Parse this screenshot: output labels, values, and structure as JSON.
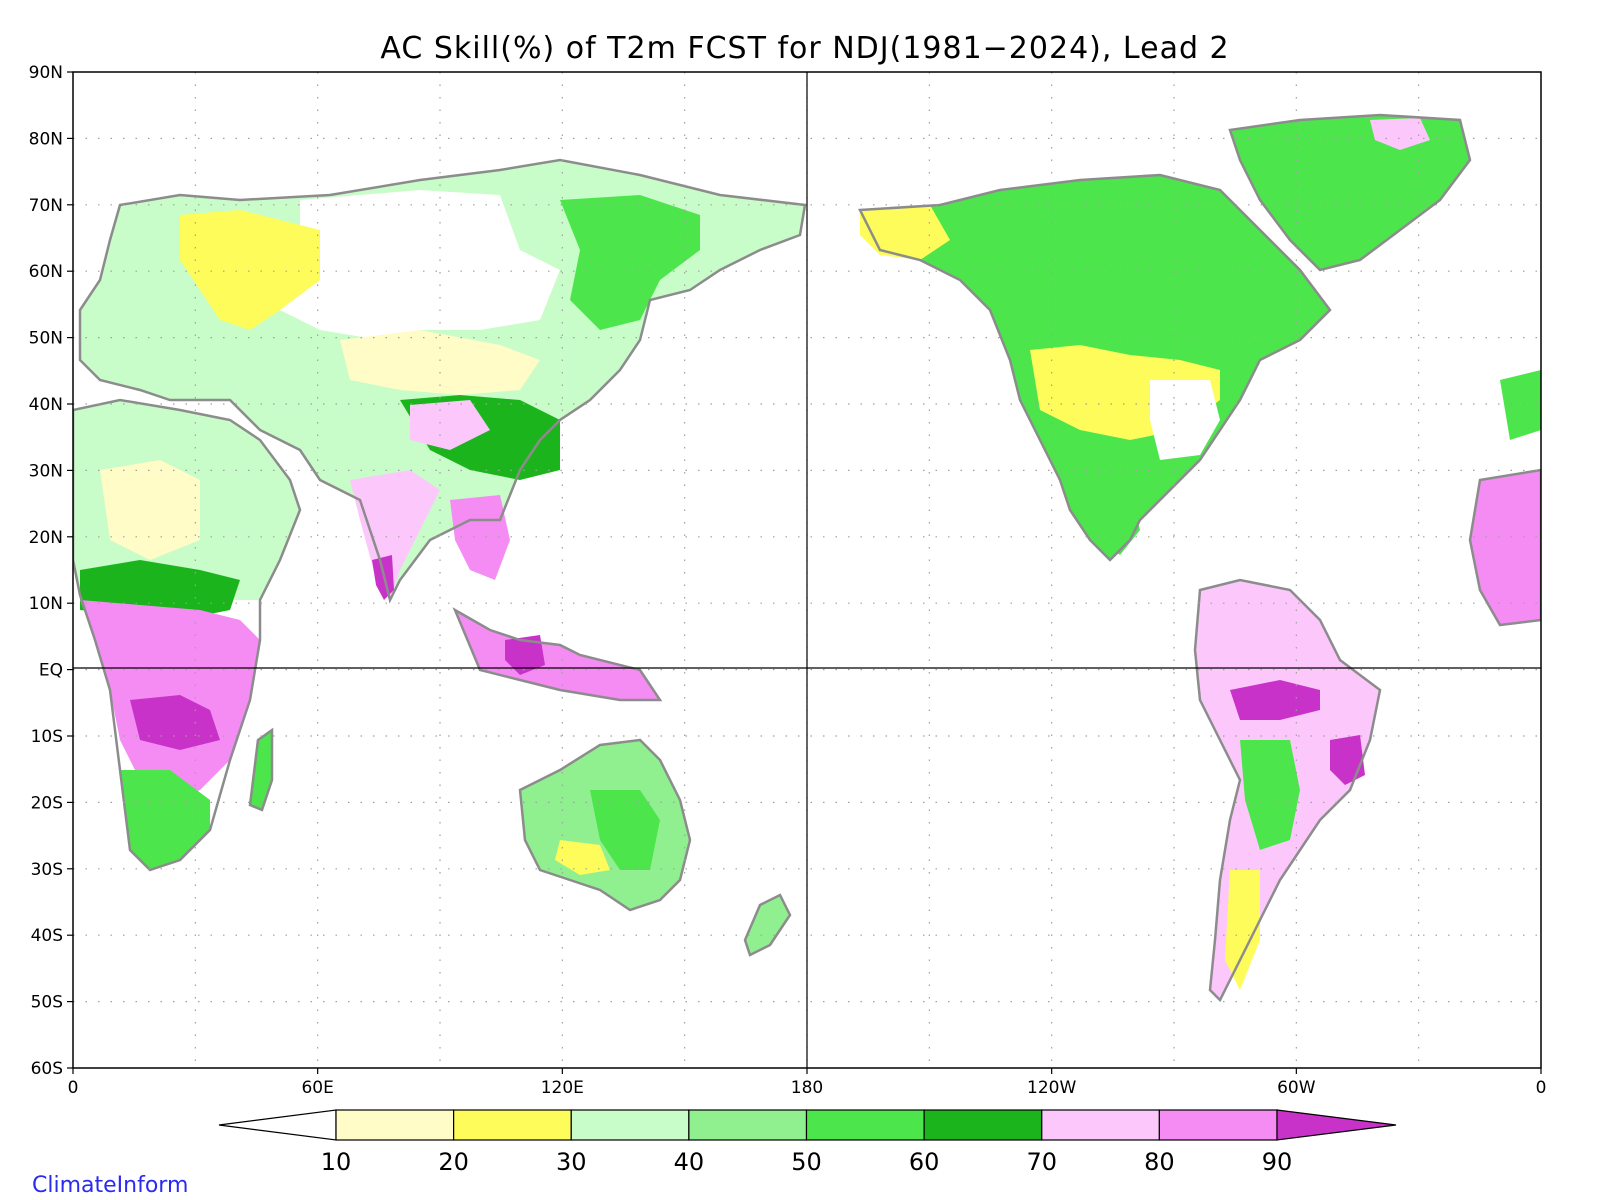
{
  "title": "AC Skill(%) of T2m FCST for NDJ(1981−2024), Lead 2",
  "credit": "ClimateInform",
  "lat_ticks": [
    "90N",
    "80N",
    "70N",
    "60N",
    "50N",
    "40N",
    "30N",
    "20N",
    "10N",
    "EQ",
    "10S",
    "20S",
    "30S",
    "40S",
    "50S",
    "60S"
  ],
  "lon_ticks": [
    "0",
    "60E",
    "120E",
    "180",
    "120W",
    "60W",
    "0"
  ],
  "colorbar": {
    "tick_labels": [
      "10",
      "20",
      "30",
      "40",
      "50",
      "60",
      "70",
      "80",
      "90"
    ],
    "bin_colors": [
      "#fffcc8",
      "#fdfc5a",
      "#c8fcc8",
      "#90f090",
      "#4ce64c",
      "#1cb41c",
      "#fcc8fc",
      "#f48cf4",
      "#c832c8"
    ],
    "below_color": "#ffffff",
    "above_color": "#c832c8"
  },
  "colors": {
    "land_outline": "#8c8c8c",
    "grid_dots": "#a0a0a0",
    "lakes_outline": "#000000"
  }
}
